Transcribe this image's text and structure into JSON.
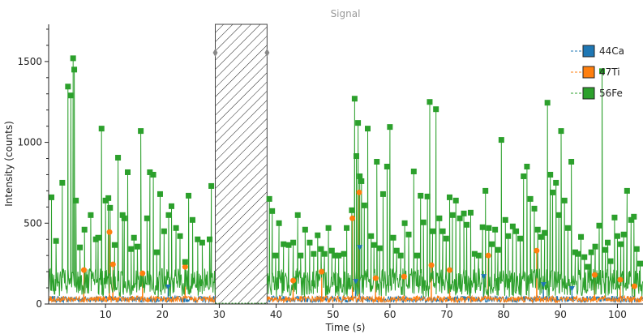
{
  "chart_data": {
    "type": "line",
    "title": "Signal",
    "xlabel": "Time (s)",
    "ylabel": "Intensity (counts)",
    "xlim": [
      0,
      104.5
    ],
    "ylim": [
      0,
      1730
    ],
    "xticks": [
      10,
      20,
      30,
      40,
      50,
      60,
      70,
      80,
      90,
      100
    ],
    "yticks": [
      0,
      500,
      1000,
      1500
    ],
    "grid": false,
    "legend_position": "top-right",
    "excluded_region": [
      29.3,
      38.4
    ],
    "series": [
      {
        "name": "44Ca",
        "color": "#1f77b4",
        "marker": "triangle-down",
        "peaks": [
          [
            54.7,
            350
          ],
          [
            54.0,
            140
          ],
          [
            76.5,
            170
          ],
          [
            87.0,
            120
          ],
          [
            21.0,
            105
          ],
          [
            92.0,
            95
          ]
        ]
      },
      {
        "name": "47Ti",
        "color": "#ff7f0e",
        "marker": "circle",
        "peaks": [
          [
            10.7,
            445
          ],
          [
            11.3,
            245
          ],
          [
            53.4,
            530
          ],
          [
            54.6,
            690
          ],
          [
            57.5,
            160
          ],
          [
            62.5,
            170
          ],
          [
            67.3,
            240
          ],
          [
            77.3,
            300
          ],
          [
            85.8,
            330
          ],
          [
            70.5,
            210
          ],
          [
            96.0,
            180
          ],
          [
            100.5,
            150
          ],
          [
            103.0,
            110
          ],
          [
            6.2,
            210
          ],
          [
            16.5,
            190
          ],
          [
            24.0,
            230
          ],
          [
            43.0,
            145
          ],
          [
            48.0,
            200
          ]
        ]
      },
      {
        "name": "56Fe",
        "color": "#2ca02c",
        "marker": "square",
        "baseline": 110,
        "peaks": [
          [
            0.5,
            660
          ],
          [
            1.3,
            390
          ],
          [
            2.4,
            750
          ],
          [
            3.4,
            1345
          ],
          [
            3.9,
            1290
          ],
          [
            4.3,
            1520
          ],
          [
            4.5,
            1450
          ],
          [
            4.8,
            640
          ],
          [
            5.5,
            350
          ],
          [
            6.3,
            460
          ],
          [
            7.4,
            550
          ],
          [
            8.3,
            400
          ],
          [
            8.7,
            410
          ],
          [
            9.3,
            1085
          ],
          [
            10.0,
            640
          ],
          [
            10.5,
            655
          ],
          [
            10.8,
            595
          ],
          [
            11.6,
            365
          ],
          [
            12.2,
            905
          ],
          [
            13.0,
            550
          ],
          [
            13.3,
            530
          ],
          [
            13.9,
            815
          ],
          [
            14.5,
            340
          ],
          [
            15.0,
            410
          ],
          [
            15.6,
            355
          ],
          [
            16.2,
            1070
          ],
          [
            17.3,
            530
          ],
          [
            17.8,
            815
          ],
          [
            18.4,
            800
          ],
          [
            19.0,
            320
          ],
          [
            19.6,
            680
          ],
          [
            20.3,
            450
          ],
          [
            21.1,
            550
          ],
          [
            21.6,
            605
          ],
          [
            22.4,
            470
          ],
          [
            23.1,
            420
          ],
          [
            24.0,
            260
          ],
          [
            24.6,
            670
          ],
          [
            25.3,
            520
          ],
          [
            26.2,
            400
          ],
          [
            27.0,
            380
          ],
          [
            28.3,
            400
          ],
          [
            28.6,
            730
          ],
          [
            38.8,
            650
          ],
          [
            39.3,
            575
          ],
          [
            39.9,
            300
          ],
          [
            40.5,
            500
          ],
          [
            41.3,
            370
          ],
          [
            42.2,
            365
          ],
          [
            43.0,
            380
          ],
          [
            43.8,
            550
          ],
          [
            44.3,
            300
          ],
          [
            45.1,
            460
          ],
          [
            45.9,
            380
          ],
          [
            46.6,
            310
          ],
          [
            47.3,
            425
          ],
          [
            47.9,
            340
          ],
          [
            48.5,
            310
          ],
          [
            49.2,
            470
          ],
          [
            49.8,
            330
          ],
          [
            50.4,
            300
          ],
          [
            51.0,
            300
          ],
          [
            51.9,
            310
          ],
          [
            52.4,
            470
          ],
          [
            53.3,
            580
          ],
          [
            53.8,
            1270
          ],
          [
            54.1,
            915
          ],
          [
            54.4,
            1120
          ],
          [
            54.7,
            790
          ],
          [
            55.0,
            760
          ],
          [
            55.5,
            610
          ],
          [
            56.1,
            1085
          ],
          [
            56.7,
            420
          ],
          [
            57.2,
            365
          ],
          [
            57.7,
            880
          ],
          [
            58.2,
            345
          ],
          [
            58.8,
            680
          ],
          [
            59.5,
            850
          ],
          [
            60.0,
            1095
          ],
          [
            60.6,
            410
          ],
          [
            61.2,
            330
          ],
          [
            61.9,
            300
          ],
          [
            62.6,
            500
          ],
          [
            63.3,
            430
          ],
          [
            64.2,
            820
          ],
          [
            64.8,
            300
          ],
          [
            65.4,
            670
          ],
          [
            65.9,
            505
          ],
          [
            66.6,
            665
          ],
          [
            67.0,
            1250
          ],
          [
            67.5,
            450
          ],
          [
            68.1,
            1205
          ],
          [
            68.7,
            530
          ],
          [
            69.3,
            450
          ],
          [
            69.9,
            405
          ],
          [
            70.5,
            660
          ],
          [
            71.0,
            550
          ],
          [
            71.6,
            640
          ],
          [
            72.3,
            530
          ],
          [
            73.0,
            560
          ],
          [
            73.5,
            490
          ],
          [
            74.2,
            565
          ],
          [
            74.9,
            310
          ],
          [
            75.6,
            300
          ],
          [
            76.3,
            475
          ],
          [
            76.8,
            700
          ],
          [
            77.4,
            470
          ],
          [
            77.9,
            370
          ],
          [
            78.5,
            460
          ],
          [
            79.0,
            335
          ],
          [
            79.6,
            1015
          ],
          [
            80.3,
            520
          ],
          [
            80.8,
            420
          ],
          [
            81.6,
            480
          ],
          [
            82.2,
            450
          ],
          [
            82.9,
            405
          ],
          [
            83.5,
            790
          ],
          [
            84.1,
            850
          ],
          [
            84.7,
            650
          ],
          [
            85.4,
            590
          ],
          [
            86.0,
            460
          ],
          [
            86.6,
            415
          ],
          [
            87.2,
            440
          ],
          [
            87.7,
            1245
          ],
          [
            88.2,
            800
          ],
          [
            88.6,
            690
          ],
          [
            89.2,
            750
          ],
          [
            89.7,
            550
          ],
          [
            90.1,
            1070
          ],
          [
            90.7,
            640
          ],
          [
            91.3,
            470
          ],
          [
            91.9,
            880
          ],
          [
            92.6,
            320
          ],
          [
            93.1,
            310
          ],
          [
            93.6,
            415
          ],
          [
            94.2,
            290
          ],
          [
            94.8,
            230
          ],
          [
            95.4,
            320
          ],
          [
            96.1,
            355
          ],
          [
            96.8,
            485
          ],
          [
            97.3,
            1440
          ],
          [
            97.9,
            335
          ],
          [
            98.3,
            380
          ],
          [
            98.8,
            265
          ],
          [
            99.5,
            535
          ],
          [
            100.0,
            420
          ],
          [
            100.6,
            370
          ],
          [
            101.1,
            430
          ],
          [
            101.7,
            700
          ],
          [
            102.4,
            520
          ],
          [
            102.9,
            540
          ],
          [
            103.4,
            340
          ],
          [
            104.0,
            250
          ]
        ]
      }
    ]
  }
}
